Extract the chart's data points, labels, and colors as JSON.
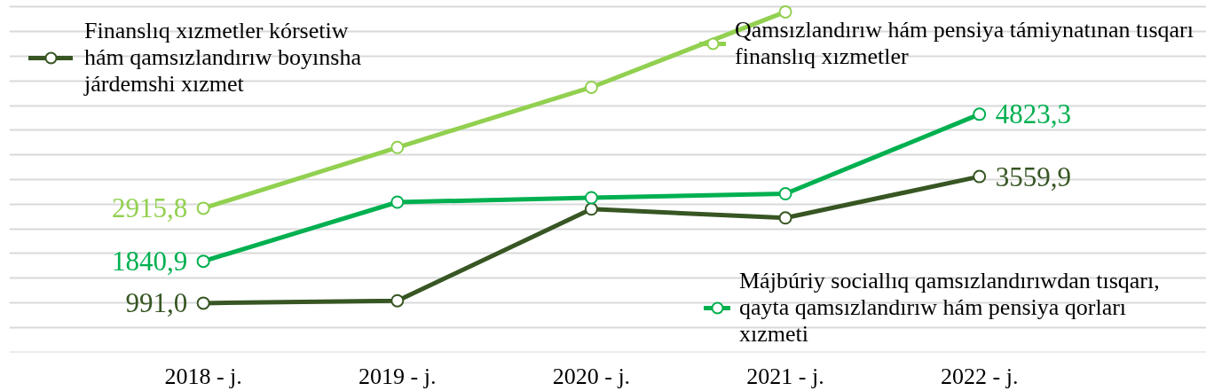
{
  "chart_data": {
    "type": "line",
    "categories": [
      "2018 - j.",
      "2019 - j.",
      "2020 - j.",
      "2021 - j.",
      "2022 - j."
    ],
    "series": [
      {
        "name": "Finanslıq xızmetler kórsetiw hám qamsızlandırıw boyınsha járdemshi xızmet",
        "color": "#375623",
        "values": [
          991.0,
          1040,
          2900,
          2720,
          3559.9
        ],
        "value_labels": [
          "991,0",
          null,
          null,
          null,
          "3559,9"
        ]
      },
      {
        "name": "Qamsızlandırıw hám pensiya támiynatınan tısqarı finanslıq xızmetler",
        "color": "#92d050",
        "values": [
          2915.8,
          4150,
          5370,
          6900,
          null
        ],
        "value_labels": [
          "2915,8",
          null,
          null,
          null,
          null
        ]
      },
      {
        "name": "Májbúriy sociallıq qamsızlandırıwdan tısqarı, qayta qamsızlandırıw hám pensiya qorları xızmeti",
        "color": "#00b050",
        "values": [
          1840.9,
          3040,
          3130,
          3210,
          4823.3
        ],
        "value_labels": [
          "1840,9",
          null,
          null,
          null,
          "4823,3"
        ]
      }
    ],
    "grid": "y",
    "tick_labels": "x",
    "legend": "bottom right",
    "marker": "circle",
    "line_style": "solid"
  }
}
